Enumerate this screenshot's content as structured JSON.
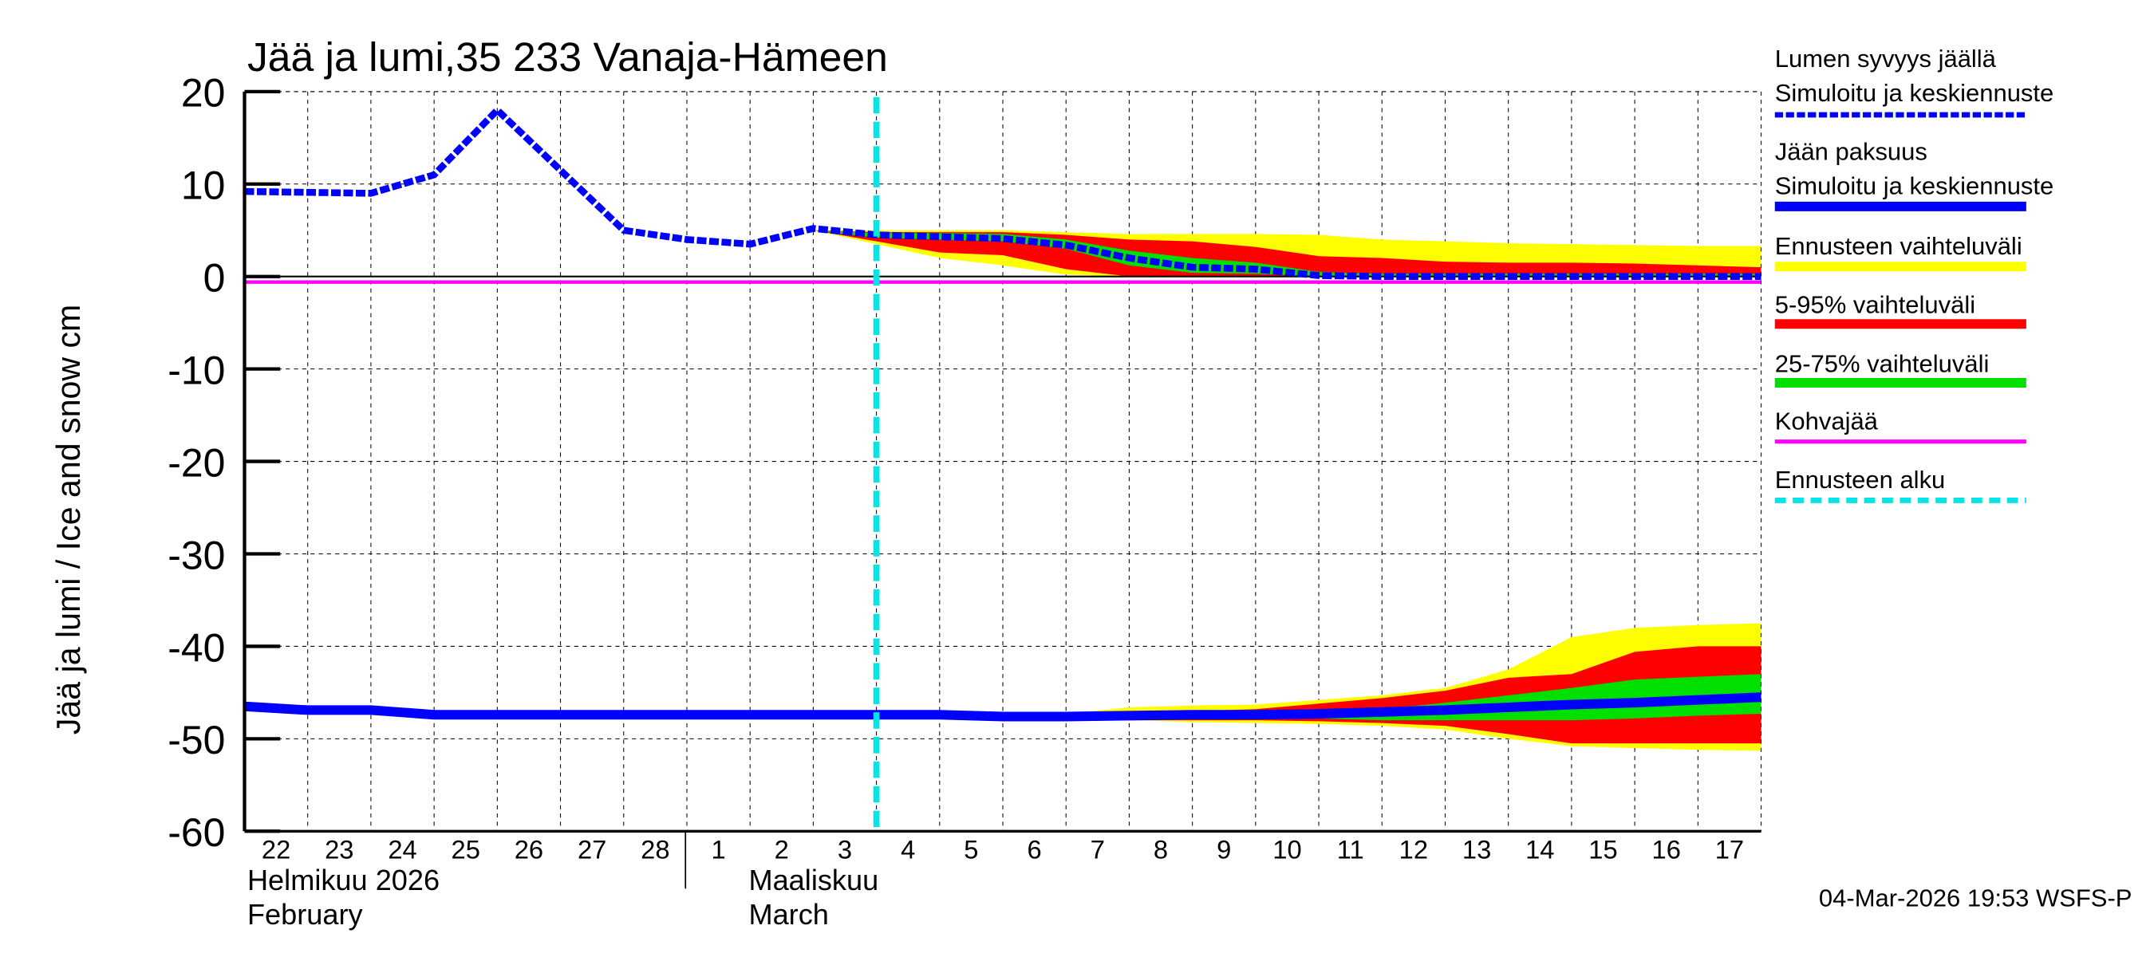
{
  "chart_data": {
    "type": "area",
    "title": "Jää ja lumi,35 233 Vanaja-Hämeen",
    "ylabel": "Jää ja lumi / Ice and snow    cm",
    "ylim": [
      -60,
      20
    ],
    "yticks": [
      20,
      10,
      0,
      -10,
      -20,
      -30,
      -40,
      -50,
      -60
    ],
    "grid": true,
    "legend_placement": "right",
    "dates": [
      "2026-02-22",
      "2026-02-23",
      "2026-02-24",
      "2026-02-25",
      "2026-02-26",
      "2026-02-27",
      "2026-02-28",
      "2026-03-01",
      "2026-03-02",
      "2026-03-03",
      "2026-03-04",
      "2026-03-05",
      "2026-03-06",
      "2026-03-07",
      "2026-03-08",
      "2026-03-09",
      "2026-03-10",
      "2026-03-11",
      "2026-03-12",
      "2026-03-13",
      "2026-03-14",
      "2026-03-15",
      "2026-03-16",
      "2026-03-17",
      "2026-03-18"
    ],
    "xtick_labels": [
      "22",
      "23",
      "24",
      "25",
      "26",
      "27",
      "28",
      "1",
      "2",
      "3",
      "4",
      "5",
      "6",
      "7",
      "8",
      "9",
      "10",
      "11",
      "12",
      "13",
      "14",
      "15",
      "16",
      "17"
    ],
    "month_labels": [
      {
        "fi": "Helmikuu  2026",
        "en": "February"
      },
      {
        "fi": "Maaliskuu",
        "en": "March"
      }
    ],
    "forecast_start": "2026-03-04",
    "kohvajaa": -0.6,
    "colors": {
      "snow": "#0000ff",
      "ice": "#0000ff",
      "range": "#ffff00",
      "p5_95": "#ff0000",
      "p25_75": "#00e000",
      "kohva": "#ff00ff",
      "forecast_start": "#00e5e5"
    },
    "series": [
      {
        "name": "Lumen syvyys jäällä",
        "values": [
          9.2,
          9.1,
          9.0,
          11,
          18,
          11.5,
          5,
          4,
          3.5,
          5.2,
          4.5,
          4.3,
          4.1,
          3.4,
          2,
          1,
          0.8,
          0.1,
          0,
          0,
          0,
          0,
          0,
          0,
          0
        ]
      },
      {
        "name": "Jään paksuus",
        "values": [
          -46.5,
          -46.9,
          -46.9,
          -47.4,
          -47.4,
          -47.4,
          -47.4,
          -47.4,
          -47.4,
          -47.4,
          -47.4,
          -47.4,
          -47.6,
          -47.6,
          -47.5,
          -47.4,
          -47.4,
          -47.3,
          -47.1,
          -46.9,
          -46.6,
          -46.3,
          -46.1,
          -45.8,
          -45.5
        ]
      }
    ],
    "bands": [
      {
        "kind": "range",
        "from": "2026-03-03",
        "upper": [
          5,
          5,
          5,
          5,
          4.8,
          4.6,
          4.6,
          4.6,
          4.5,
          4,
          3.8,
          3.6,
          3.5,
          3.4,
          3.3,
          3.3
        ],
        "lower": [
          5,
          3.5,
          2,
          1.2,
          0.2,
          0,
          0,
          0,
          0,
          0,
          0,
          0,
          0,
          0,
          0,
          0
        ]
      },
      {
        "kind": "p5_95",
        "from": "2026-03-03",
        "upper": [
          5,
          4.8,
          4.8,
          4.8,
          4.5,
          4,
          3.8,
          3.2,
          2.2,
          2,
          1.6,
          1.5,
          1.5,
          1.4,
          1.2,
          1
        ],
        "lower": [
          5,
          3.8,
          2.6,
          2.3,
          0.8,
          0,
          0,
          0,
          0,
          0,
          0,
          0,
          0,
          0,
          0,
          0
        ]
      },
      {
        "kind": "p25_75",
        "from": "2026-03-03",
        "upper": [
          5,
          4.7,
          4.7,
          4.6,
          4,
          2.8,
          2,
          1.5,
          0.5,
          0.3,
          0.3,
          0.3,
          0.3,
          0.3,
          0.3,
          0.3
        ],
        "lower": [
          5,
          4.2,
          4,
          3.8,
          3,
          1.2,
          0.4,
          0.3,
          0,
          0,
          0,
          0,
          0,
          0,
          0,
          0
        ]
      },
      {
        "kind": "range",
        "from": "2026-03-06",
        "upper": [
          -47.6,
          -47.3,
          -46.6,
          -46.4,
          -46.3,
          -45.8,
          -45.3,
          -44.5,
          -42.5,
          -39,
          -38,
          -37.7,
          -37.5
        ],
        "lower": [
          -47.8,
          -48,
          -48,
          -48.2,
          -48.3,
          -48.4,
          -48.6,
          -49,
          -50,
          -50.8,
          -51,
          -51.2,
          -51.3
        ]
      },
      {
        "kind": "p5_95",
        "from": "2026-03-06",
        "upper": [
          -47.7,
          -47.5,
          -47.3,
          -47,
          -46.8,
          -46.2,
          -45.6,
          -44.8,
          -43.4,
          -43,
          -40.6,
          -40,
          -40
        ],
        "lower": [
          -47.8,
          -48,
          -48,
          -48,
          -48,
          -48.1,
          -48.3,
          -48.6,
          -49.5,
          -50.5,
          -50.5,
          -50.5,
          -50.5
        ]
      },
      {
        "kind": "p25_75",
        "from": "2026-03-06",
        "upper": [
          -47.7,
          -47.6,
          -47.5,
          -47.5,
          -47.4,
          -47.2,
          -46.8,
          -46.1,
          -45.3,
          -44.5,
          -43.6,
          -43.3,
          -43
        ],
        "lower": [
          -47.7,
          -47.7,
          -47.8,
          -47.8,
          -47.8,
          -47.8,
          -48,
          -48,
          -48,
          -48,
          -47.8,
          -47.5,
          -47.3
        ]
      }
    ],
    "legend": [
      {
        "lines": [
          "Lumen syvyys jäällä",
          "Simuloitu ja keskiennuste"
        ],
        "color": "#0000ff",
        "style": "dashed"
      },
      {
        "lines": [
          "Jään paksuus",
          "Simuloitu ja keskiennuste"
        ],
        "color": "#0000ff",
        "style": "solid"
      },
      {
        "lines": [
          "Ennusteen vaihteluväli"
        ],
        "color": "#ffff00",
        "style": "solid"
      },
      {
        "lines": [
          "5-95% vaihteluväli"
        ],
        "color": "#ff0000",
        "style": "solid"
      },
      {
        "lines": [
          "25-75% vaihteluväli"
        ],
        "color": "#00e000",
        "style": "solid"
      },
      {
        "lines": [
          "Kohvajää"
        ],
        "color": "#ff00ff",
        "style": "thin"
      },
      {
        "lines": [
          "Ennusteen alku"
        ],
        "color": "#00e5e5",
        "style": "dashed"
      }
    ],
    "footer": "04-Mar-2026 19:53 WSFS-P"
  }
}
